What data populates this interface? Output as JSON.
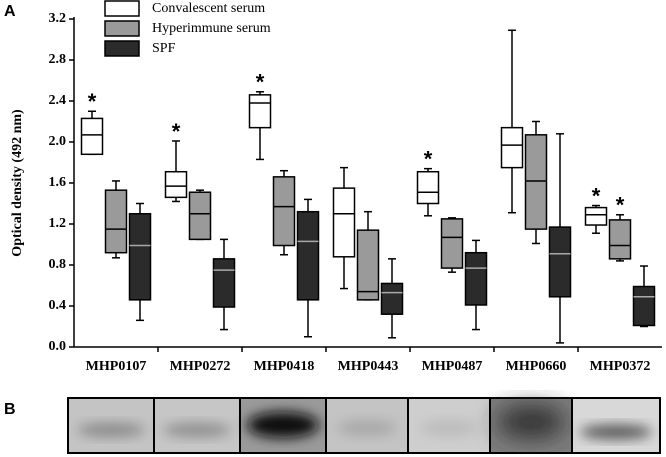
{
  "panel_labels": [
    "A",
    "B"
  ],
  "chart_data": {
    "type": "box",
    "y_label": "Optical density (492 nm)",
    "categories": [
      "MHP0107",
      "MHP0272",
      "MHP0418",
      "MHP0443",
      "MHP0487",
      "MHP0660",
      "MHP0372"
    ],
    "ylim": [
      0,
      3.2
    ],
    "yticks": [
      {
        "value": 0,
        "label": "0.0"
      },
      0.4,
      0.8,
      1.2,
      1.6,
      {
        "value": 2,
        "label": "2.0"
      },
      2.4,
      2.8,
      3.2
    ],
    "series": [
      {
        "name": "Convalescent serum",
        "color": "#ffffff",
        "values": [
          {
            "min": 1.88,
            "q1": 1.88,
            "median": 2.07,
            "q3": 2.23,
            "max": 2.3
          },
          {
            "min": 1.42,
            "q1": 1.46,
            "median": 1.57,
            "q3": 1.71,
            "max": 2.01
          },
          {
            "min": 1.83,
            "q1": 2.14,
            "median": 2.38,
            "q3": 2.46,
            "max": 2.49
          },
          {
            "min": 0.57,
            "q1": 0.88,
            "median": 1.3,
            "q3": 1.55,
            "max": 1.75
          },
          {
            "min": 1.28,
            "q1": 1.4,
            "median": 1.51,
            "q3": 1.71,
            "max": 1.74
          },
          {
            "min": 1.31,
            "q1": 1.75,
            "median": 1.97,
            "q3": 2.14,
            "max": 3.09
          },
          {
            "min": 1.11,
            "q1": 1.19,
            "median": 1.29,
            "q3": 1.36,
            "max": 1.38
          }
        ],
        "significance": [
          "*",
          "*",
          "*",
          null,
          "*",
          null,
          "*"
        ]
      },
      {
        "name": "Hyperimmune serum",
        "color": "#9a9a9a",
        "values": [
          {
            "min": 0.87,
            "q1": 0.92,
            "median": 1.15,
            "q3": 1.53,
            "max": 1.62
          },
          {
            "min": 1.05,
            "q1": 1.05,
            "median": 1.3,
            "q3": 1.51,
            "max": 1.53
          },
          {
            "min": 0.9,
            "q1": 0.99,
            "median": 1.37,
            "q3": 1.66,
            "max": 1.72
          },
          {
            "min": 0.46,
            "q1": 0.46,
            "median": 0.54,
            "q3": 1.14,
            "max": 1.32
          },
          {
            "min": 0.73,
            "q1": 0.77,
            "median": 1.07,
            "q3": 1.25,
            "max": 1.26
          },
          {
            "min": 1.01,
            "q1": 1.15,
            "median": 1.62,
            "q3": 2.07,
            "max": 2.2
          },
          {
            "min": 0.84,
            "q1": 0.86,
            "median": 0.99,
            "q3": 1.24,
            "max": 1.29
          }
        ],
        "significance": [
          null,
          null,
          null,
          null,
          null,
          null,
          "*"
        ]
      },
      {
        "name": "SPF",
        "color": "#2b2b2b",
        "values": [
          {
            "min": 0.26,
            "q1": 0.46,
            "median": 0.99,
            "q3": 1.3,
            "max": 1.4
          },
          {
            "min": 0.17,
            "q1": 0.39,
            "median": 0.75,
            "q3": 0.86,
            "max": 1.05
          },
          {
            "min": 0.1,
            "q1": 0.46,
            "median": 1.03,
            "q3": 1.32,
            "max": 1.44
          },
          {
            "min": 0.09,
            "q1": 0.32,
            "median": 0.53,
            "q3": 0.62,
            "max": 0.86
          },
          {
            "min": 0.17,
            "q1": 0.41,
            "median": 0.77,
            "q3": 0.92,
            "max": 1.04
          },
          {
            "min": 0.04,
            "q1": 0.49,
            "median": 0.91,
            "q3": 1.17,
            "max": 2.08
          },
          {
            "min": 0.2,
            "q1": 0.21,
            "median": 0.49,
            "q3": 0.59,
            "max": 0.79
          }
        ],
        "significance": [
          null,
          null,
          null,
          null,
          null,
          null,
          null
        ]
      }
    ]
  }
}
